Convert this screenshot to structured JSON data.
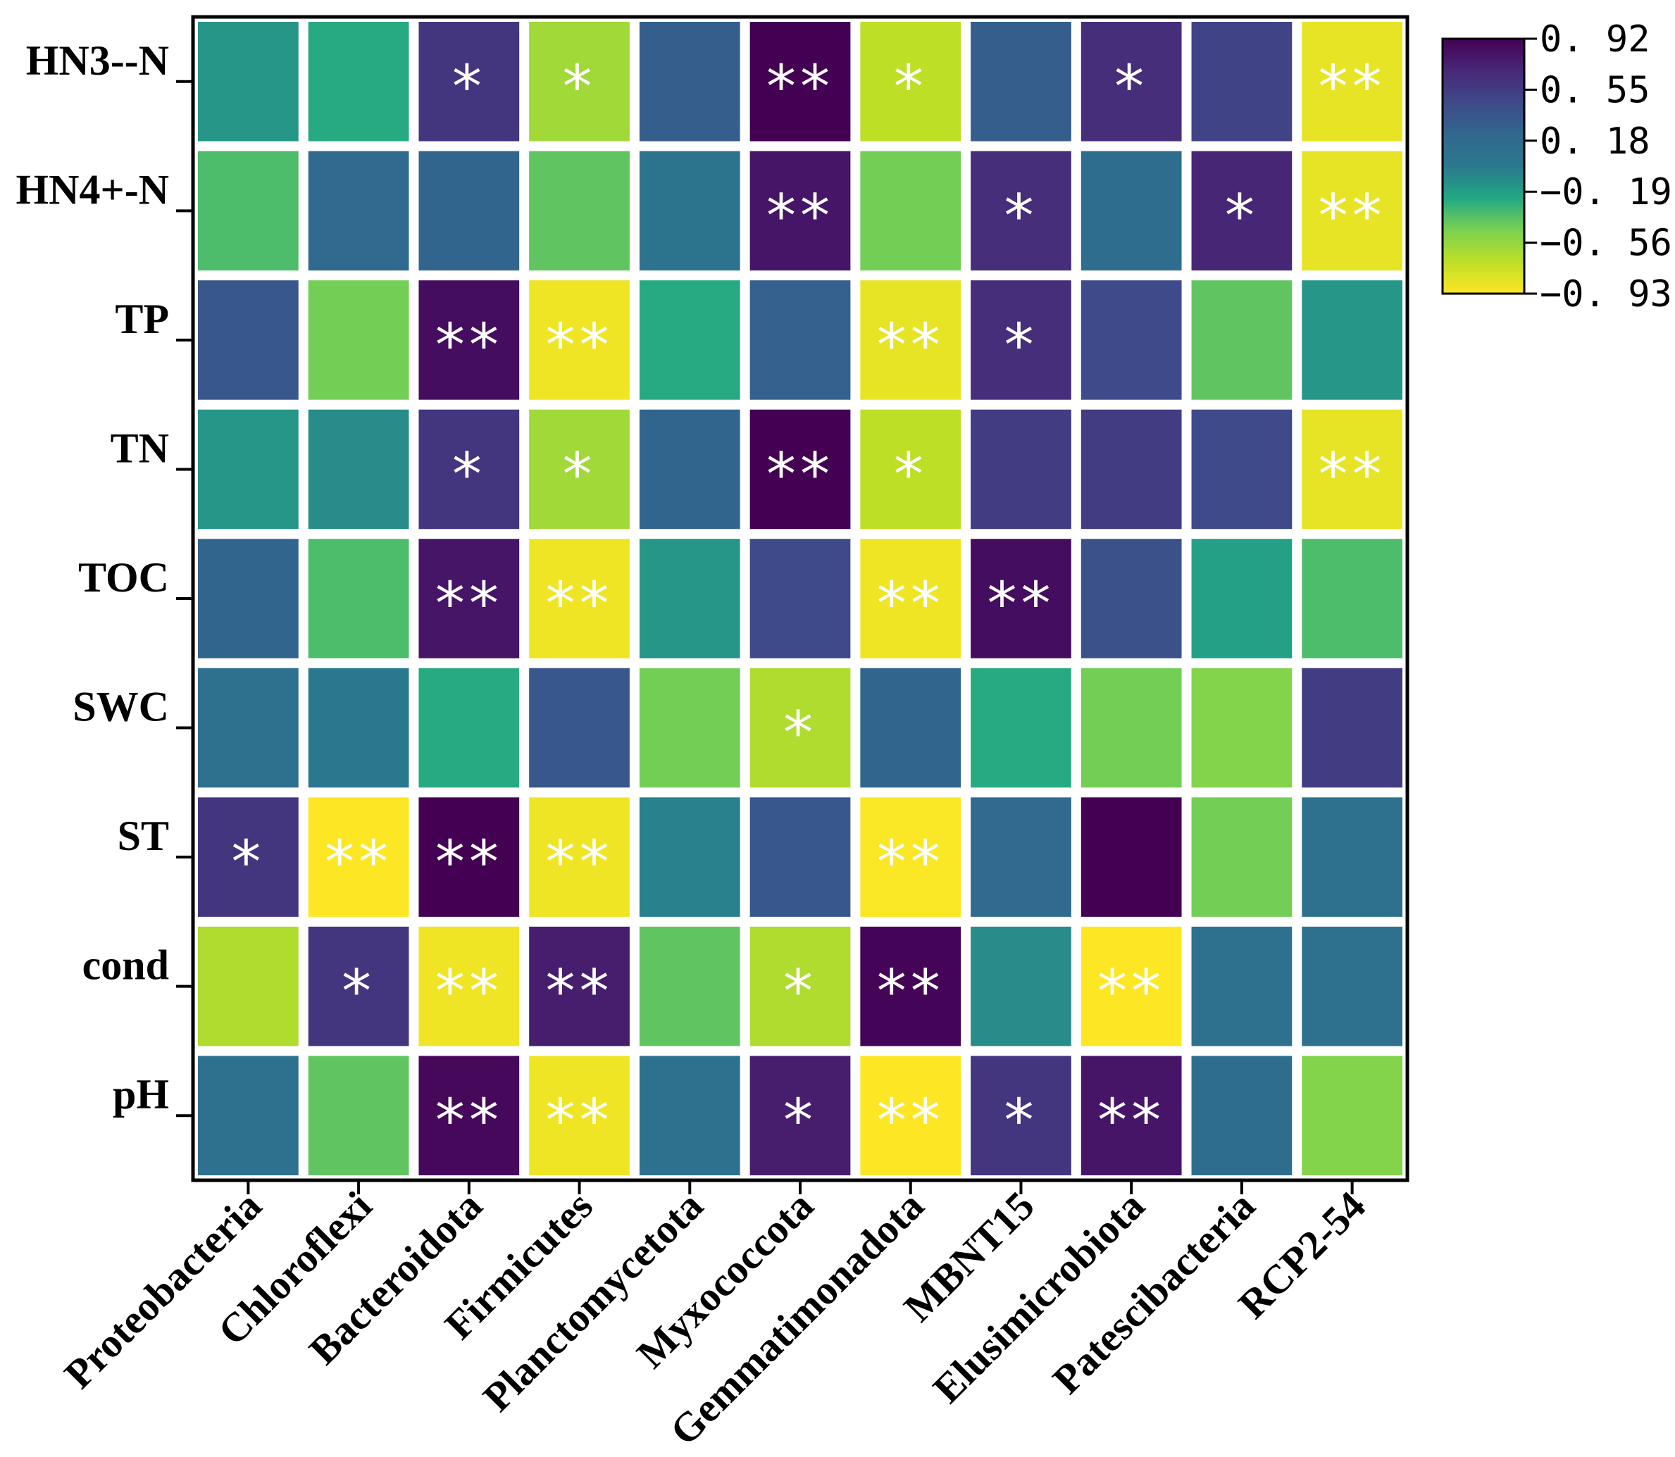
{
  "chart_data": {
    "type": "heatmap",
    "title": "",
    "rows": [
      "HN3--N",
      "HN4+-N",
      "TP",
      "TN",
      "TOC",
      "SWC",
      "ST",
      "cond",
      "pH"
    ],
    "columns": [
      "Proteobacteria",
      "Chloroflexi",
      "Bacteroidota",
      "Firmicutes",
      "Planctomycetota",
      "Myxococcota",
      "Gemmatimonadota",
      "MBNT15",
      "Elusimicrobiota",
      "Patescibacteria",
      "RCP2-54"
    ],
    "values": [
      [
        -0.15,
        -0.25,
        0.6,
        -0.6,
        0.3,
        0.92,
        -0.7,
        0.3,
        0.65,
        0.5,
        -0.85
      ],
      [
        -0.35,
        0.2,
        0.25,
        -0.4,
        0.05,
        0.8,
        -0.45,
        0.65,
        0.15,
        0.7,
        -0.85
      ],
      [
        0.35,
        -0.45,
        0.85,
        -0.88,
        -0.25,
        0.28,
        -0.85,
        0.65,
        0.45,
        -0.4,
        -0.15
      ],
      [
        -0.15,
        -0.1,
        0.6,
        -0.6,
        0.25,
        0.92,
        -0.7,
        0.55,
        0.55,
        0.45,
        -0.85
      ],
      [
        0.25,
        -0.35,
        0.8,
        -0.88,
        -0.15,
        0.45,
        -0.88,
        0.85,
        0.4,
        -0.2,
        -0.35
      ],
      [
        0.1,
        0.0,
        -0.25,
        0.35,
        -0.45,
        -0.65,
        0.25,
        -0.25,
        -0.45,
        -0.5,
        0.55
      ],
      [
        0.6,
        -0.95,
        0.92,
        -0.88,
        -0.05,
        0.35,
        -0.92,
        0.2,
        0.92,
        -0.45,
        0.1
      ],
      [
        -0.65,
        0.6,
        -0.88,
        0.75,
        -0.4,
        -0.65,
        0.9,
        -0.1,
        -0.98,
        0.1,
        0.1
      ],
      [
        0.1,
        -0.4,
        0.88,
        -0.88,
        0.1,
        0.75,
        -0.98,
        0.6,
        0.8,
        0.15,
        -0.5
      ]
    ],
    "significance": [
      [
        "",
        "",
        "*",
        "*",
        "",
        "**",
        "*",
        "",
        "*",
        "",
        "**"
      ],
      [
        "",
        "",
        "",
        "",
        "",
        "**",
        "",
        "*",
        "",
        "*",
        "**"
      ],
      [
        "",
        "",
        "**",
        "**",
        "",
        "",
        "**",
        "*",
        "",
        "",
        ""
      ],
      [
        "",
        "",
        "*",
        "*",
        "",
        "**",
        "*",
        "",
        "",
        "",
        "**"
      ],
      [
        "",
        "",
        "**",
        "**",
        "",
        "",
        "**",
        "**",
        "",
        "",
        ""
      ],
      [
        "",
        "",
        "",
        "",
        "",
        "*",
        "",
        "",
        "",
        "",
        ""
      ],
      [
        "*",
        "**",
        "**",
        "**",
        "",
        "",
        "**",
        "",
        "",
        "",
        ""
      ],
      [
        "",
        "*",
        "**",
        "**",
        "",
        "*",
        "**",
        "",
        "**",
        "",
        ""
      ],
      [
        "",
        "",
        "**",
        "**",
        "",
        "*",
        "**",
        "*",
        "**",
        "",
        ""
      ]
    ],
    "colorbar": {
      "range": [
        -0.93,
        0.92
      ],
      "tick_labels": [
        "0. 92",
        "0. 55",
        "0. 18",
        "−0. 19",
        "−0. 56",
        "−0. 93"
      ],
      "stops": [
        "#fde725",
        "#bddf26",
        "#7ad151",
        "#22a884",
        "#2a788e",
        "#31688e",
        "#3e4989",
        "#482878",
        "#440154"
      ]
    },
    "xlabel": "",
    "ylabel": ""
  }
}
